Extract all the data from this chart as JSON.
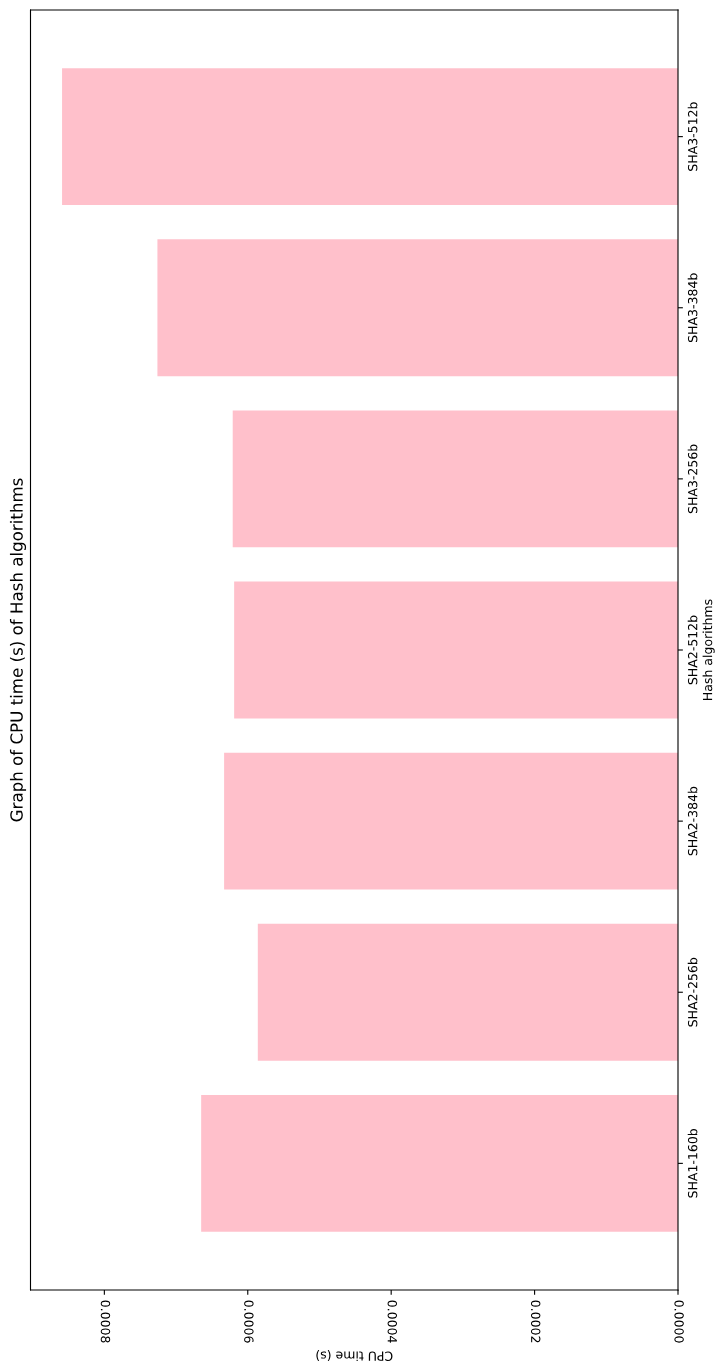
{
  "chart_data": {
    "type": "bar",
    "orientation": "horizontal",
    "title": "Graph of CPU time (s) of Hash algorithms",
    "xlabel": "CPU time (s)",
    "ylabel": "Hash algorithms",
    "categories": [
      "SHA3-512b",
      "SHA3-384b",
      "SHA3-256b",
      "SHA2-512b",
      "SHA2-384b",
      "SHA2-256b",
      "SHA1-160b"
    ],
    "values": [
      0.000859,
      0.000726,
      0.000621,
      0.000619,
      0.000633,
      0.000586,
      0.000665
    ],
    "color": "#ffc0cb",
    "xlim": [
      0.000903,
      0
    ],
    "xticks": [
      {
        "value": 0,
        "label": "0.0000"
      },
      {
        "value": 0.0002,
        "label": "0.0002"
      },
      {
        "value": 0.0004,
        "label": "0.0004"
      },
      {
        "value": 0.0006,
        "label": "0.0006"
      },
      {
        "value": 0.0008,
        "label": "0.0008"
      }
    ],
    "grid": false,
    "legend": false
  }
}
